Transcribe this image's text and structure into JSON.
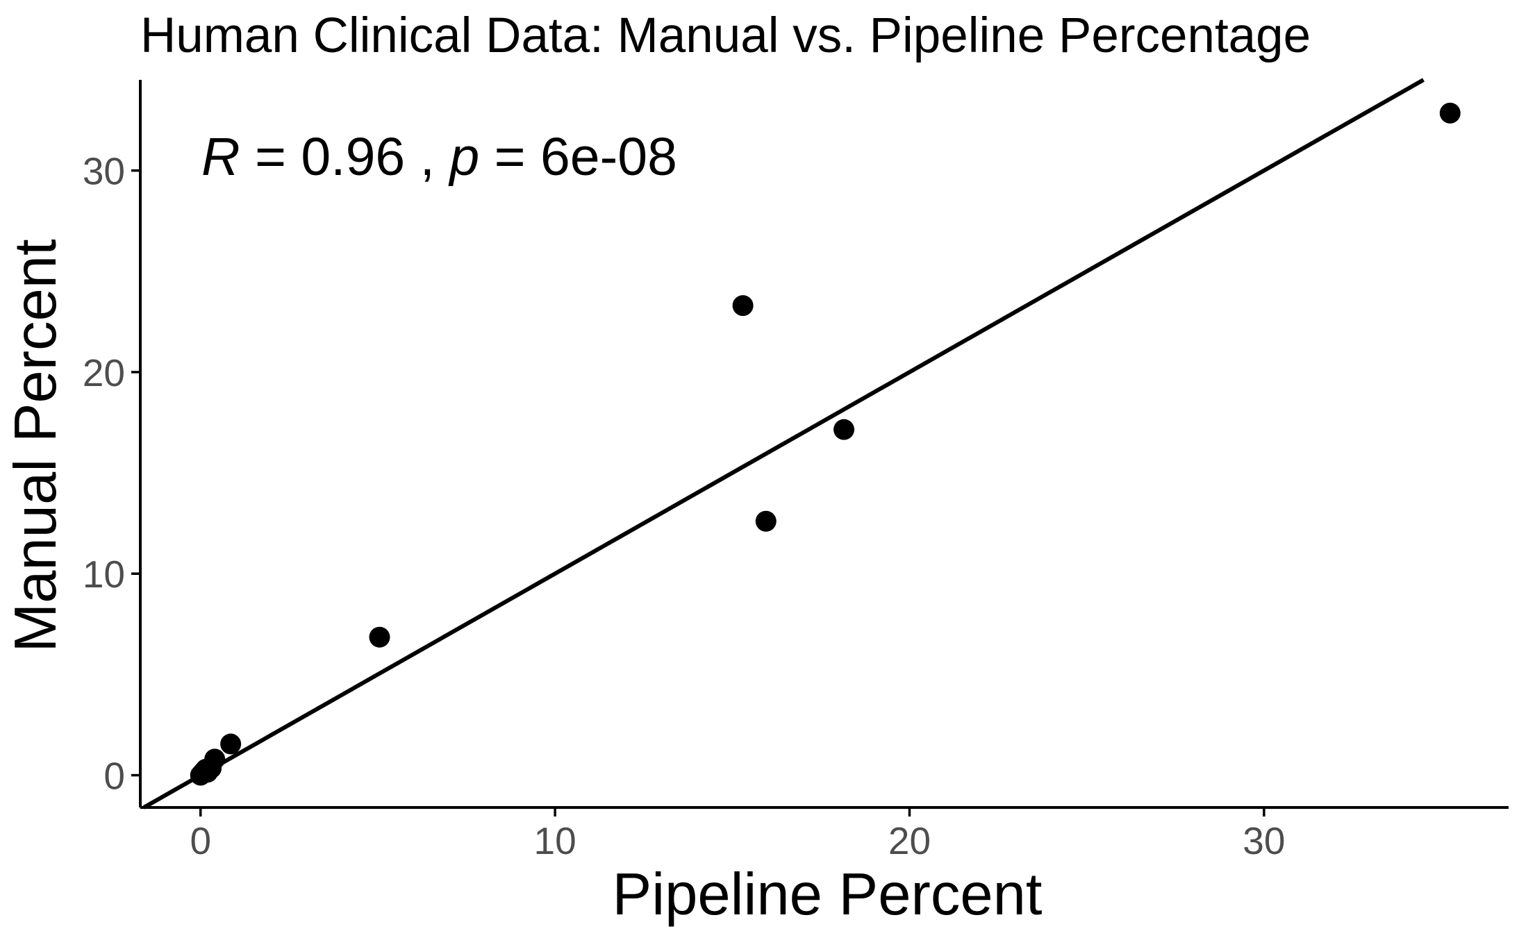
{
  "chart_data": {
    "type": "scatter",
    "title": "Human Clinical Data: Manual vs. Pipeline Percentage",
    "xlabel": "Pipeline Percent",
    "ylabel": "Manual Percent",
    "xlim": [
      -1.7,
      36.9
    ],
    "ylim": [
      -1.6,
      34.5
    ],
    "xticks": [
      0,
      10,
      20,
      30
    ],
    "yticks": [
      0,
      10,
      20,
      30
    ],
    "xtick_labels": [
      "0",
      "10",
      "20",
      "30"
    ],
    "ytick_labels": [
      "0",
      "10",
      "20",
      "30"
    ],
    "grid": false,
    "legend": "none",
    "annotation": {
      "r_symbol": "R",
      "r_text": " = 0.96 , ",
      "p_symbol": "p",
      "p_text": " = 6e-08"
    },
    "series": [
      {
        "points": [
          {
            "x": 0.0,
            "y": 0.0
          },
          {
            "x": 0.05,
            "y": 0.1
          },
          {
            "x": 0.1,
            "y": 0.2
          },
          {
            "x": 0.15,
            "y": 0.3
          },
          {
            "x": 0.2,
            "y": 0.15
          },
          {
            "x": 0.3,
            "y": 0.35
          },
          {
            "x": 0.4,
            "y": 0.8
          },
          {
            "x": 0.85,
            "y": 1.55
          },
          {
            "x": 5.05,
            "y": 6.85
          },
          {
            "x": 15.3,
            "y": 23.3
          },
          {
            "x": 15.95,
            "y": 12.6
          },
          {
            "x": 18.15,
            "y": 17.15
          },
          {
            "x": 35.25,
            "y": 32.85
          }
        ]
      }
    ],
    "fit_line": {
      "slope": 1.0,
      "intercept": 0.0
    },
    "colors": {
      "points": "#000000",
      "line": "#000000",
      "axis": "#000000",
      "tick_label": "#4d4d4d"
    }
  }
}
